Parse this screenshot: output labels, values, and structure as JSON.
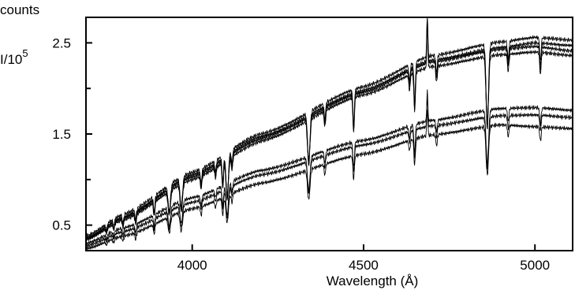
{
  "chart_data": {
    "type": "line",
    "xlabel": "Wavelength (Å)",
    "ylabel_line1": "counts",
    "ylabel_line2_base": "I/10",
    "ylabel_line2_exp": "5",
    "xlim": [
      3690,
      5110
    ],
    "ylim": [
      0.22,
      2.78
    ],
    "x_ticks": [
      4000,
      4500,
      5000
    ],
    "x_tick_labels": [
      "4000",
      "4500",
      "5000"
    ],
    "y_ticks": [
      0.5,
      1.5,
      2.5
    ],
    "y_tick_labels": [
      "0.5",
      "1.5",
      "2.5"
    ],
    "y_minor_ticks": [
      1.0,
      2.0
    ],
    "grid": false,
    "continuum_knots": {
      "x": [
        3690,
        3800,
        4000,
        4200,
        4500,
        4700,
        4900,
        5000,
        5110
      ],
      "series": [
        {
          "values": [
            0.38,
            0.62,
            1.08,
            1.5,
            2.02,
            2.36,
            2.51,
            2.56,
            2.53
          ]
        },
        {
          "values": [
            0.36,
            0.59,
            1.05,
            1.47,
            1.98,
            2.31,
            2.45,
            2.5,
            2.47
          ]
        },
        {
          "values": [
            0.35,
            0.58,
            1.03,
            1.45,
            1.96,
            2.29,
            2.43,
            2.46,
            2.41
          ]
        },
        {
          "values": [
            0.34,
            0.56,
            1.0,
            1.42,
            1.93,
            2.24,
            2.37,
            2.4,
            2.36
          ]
        },
        {
          "values": [
            0.3,
            0.47,
            0.8,
            1.1,
            1.43,
            1.65,
            1.78,
            1.79,
            1.76
          ]
        },
        {
          "values": [
            0.27,
            0.43,
            0.75,
            1.05,
            1.38,
            1.59,
            1.7,
            1.71,
            1.68
          ]
        },
        {
          "values": [
            0.24,
            0.38,
            0.68,
            0.96,
            1.28,
            1.49,
            1.6,
            1.58,
            1.56
          ]
        }
      ]
    },
    "absorption_lines": [
      {
        "x": 3750,
        "depth": 0.12
      },
      {
        "x": 3771,
        "depth": 0.13
      },
      {
        "x": 3798,
        "depth": 0.15
      },
      {
        "x": 3835,
        "depth": 0.18
      },
      {
        "x": 3889,
        "depth": 0.21
      },
      {
        "x": 3933,
        "depth": 0.3
      },
      {
        "x": 3968,
        "depth": 0.32
      },
      {
        "x": 4026,
        "depth": 0.14
      },
      {
        "x": 4068,
        "depth": 0.1
      },
      {
        "x": 4089,
        "depth": 0.24
      },
      {
        "x": 4102,
        "depth": 0.36
      },
      {
        "x": 4116,
        "depth": 0.12
      },
      {
        "x": 4340,
        "depth": 0.3
      },
      {
        "x": 4387,
        "depth": 0.1
      },
      {
        "x": 4471,
        "depth": 0.2
      },
      {
        "x": 4634,
        "depth": 0.08
      },
      {
        "x": 4649,
        "depth": 0.2
      },
      {
        "x": 4713,
        "depth": 0.08
      },
      {
        "x": 4861,
        "depth": 0.34
      },
      {
        "x": 4922,
        "depth": 0.08
      },
      {
        "x": 5016,
        "depth": 0.1
      }
    ],
    "emission_lines": [
      {
        "x": 4686,
        "height": 0.2
      }
    ]
  }
}
